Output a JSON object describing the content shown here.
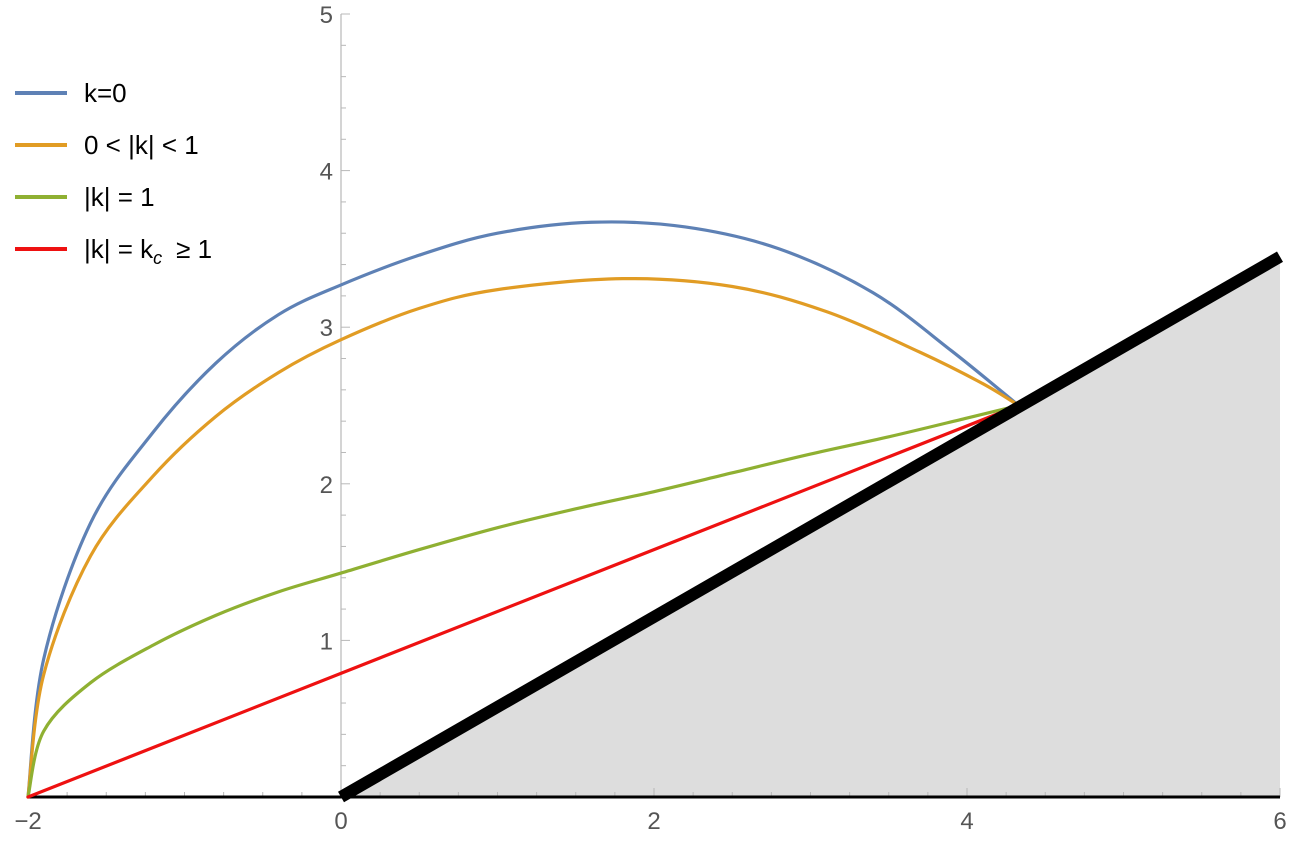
{
  "chart_data": {
    "type": "line",
    "title": "",
    "xlabel": "",
    "ylabel": "",
    "xlim": [
      -2,
      6
    ],
    "ylim": [
      0,
      5
    ],
    "x_ticks": [
      -2,
      0,
      2,
      4,
      6
    ],
    "x_tick_labels": [
      "−2",
      "0",
      "2",
      "4",
      "6"
    ],
    "y_ticks": [
      1,
      2,
      3,
      4,
      5
    ],
    "y_tick_labels": [
      "1",
      "2",
      "3",
      "4",
      "5"
    ],
    "grid": false,
    "legend_position": "top-left",
    "shaded_region": {
      "boundary_line": {
        "x": [
          0,
          6
        ],
        "y": [
          0,
          3.45
        ]
      },
      "fill_color": "#dddddd",
      "line_color": "#000000"
    },
    "series": [
      {
        "name": "k=0",
        "color": "#5e81b5",
        "points": [
          [
            -2,
            0
          ],
          [
            -1.9,
            0.88
          ],
          [
            -1.6,
            1.75
          ],
          [
            -1.2,
            2.33
          ],
          [
            -0.8,
            2.77
          ],
          [
            -0.4,
            3.08
          ],
          [
            0,
            3.27
          ],
          [
            0.5,
            3.46
          ],
          [
            1.0,
            3.6
          ],
          [
            1.6,
            3.67
          ],
          [
            2.2,
            3.64
          ],
          [
            2.8,
            3.5
          ],
          [
            3.4,
            3.22
          ],
          [
            3.9,
            2.85
          ],
          [
            4.33,
            2.5
          ]
        ]
      },
      {
        "name": "0 < |k| < 1",
        "color": "#e19c24",
        "points": [
          [
            -2,
            0
          ],
          [
            -1.9,
            0.78
          ],
          [
            -1.6,
            1.54
          ],
          [
            -1.2,
            2.05
          ],
          [
            -0.8,
            2.43
          ],
          [
            -0.4,
            2.71
          ],
          [
            0,
            2.92
          ],
          [
            0.5,
            3.12
          ],
          [
            1.0,
            3.24
          ],
          [
            1.8,
            3.31
          ],
          [
            2.5,
            3.26
          ],
          [
            3.1,
            3.1
          ],
          [
            3.7,
            2.84
          ],
          [
            4.1,
            2.64
          ],
          [
            4.33,
            2.5
          ]
        ]
      },
      {
        "name": "|k| = 1",
        "color": "#8fb032",
        "points": [
          [
            -2,
            0
          ],
          [
            -1.9,
            0.42
          ],
          [
            -1.6,
            0.73
          ],
          [
            -1.2,
            0.97
          ],
          [
            -0.8,
            1.16
          ],
          [
            -0.4,
            1.31
          ],
          [
            0,
            1.43
          ],
          [
            0.5,
            1.58
          ],
          [
            1.0,
            1.72
          ],
          [
            1.5,
            1.84
          ],
          [
            2.0,
            1.95
          ],
          [
            2.5,
            2.07
          ],
          [
            3.0,
            2.19
          ],
          [
            3.5,
            2.3
          ],
          [
            4.0,
            2.42
          ],
          [
            4.33,
            2.5
          ]
        ]
      },
      {
        "name": "|k| = k",
        "name_subscript": "c",
        "name_suffix": "≥ 1",
        "color": "#ee1111",
        "points": [
          [
            -2,
            0
          ],
          [
            4.33,
            2.5
          ]
        ]
      }
    ]
  }
}
